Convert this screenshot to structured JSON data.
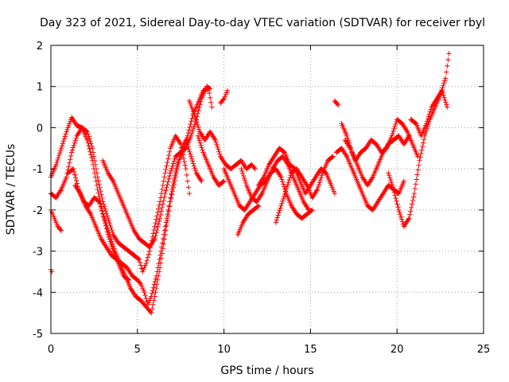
{
  "chart_data": {
    "type": "scatter",
    "title": "Day 323 of 2021, Sidereal Day-to-day VTEC variation (SDTVAR) for receiver rbyl",
    "xlabel": "GPS time / hours",
    "ylabel": "SDTVAR / TECUs",
    "xlim": [
      0,
      25
    ],
    "ylim": [
      -5,
      2
    ],
    "x_ticks": [
      "0",
      "5",
      "10",
      "15",
      "20",
      "25"
    ],
    "y_ticks": [
      "-5",
      "-4",
      "-3",
      "-2",
      "-1",
      "0",
      "1",
      "2"
    ],
    "grid": true,
    "marker": "+",
    "color": "#ff0000",
    "tracks": [
      {
        "points": [
          [
            0.0,
            -1.2
          ],
          [
            0.3,
            -0.9
          ],
          [
            0.6,
            -0.5
          ],
          [
            0.9,
            -0.1
          ],
          [
            1.2,
            0.25
          ],
          [
            1.5,
            0.05
          ],
          [
            1.8,
            0.0
          ],
          [
            2.1,
            -0.1
          ],
          [
            2.4,
            -0.5
          ],
          [
            2.7,
            -1.2
          ],
          [
            3.0,
            -1.8
          ],
          [
            3.3,
            -2.2
          ],
          [
            3.6,
            -2.6
          ],
          [
            3.9,
            -2.8
          ],
          [
            4.2,
            -2.9
          ],
          [
            4.5,
            -3.0
          ],
          [
            4.8,
            -3.1
          ],
          [
            5.1,
            -3.2
          ],
          [
            5.3,
            -3.5
          ],
          [
            5.5,
            -3.3
          ],
          [
            5.7,
            -3.0
          ],
          [
            6.0,
            -2.4
          ],
          [
            6.3,
            -1.8
          ],
          [
            6.6,
            -1.1
          ],
          [
            6.9,
            -0.5
          ],
          [
            7.2,
            -0.2
          ],
          [
            7.5,
            -0.4
          ],
          [
            7.8,
            -1.0
          ],
          [
            8.0,
            -1.6
          ]
        ]
      },
      {
        "points": [
          [
            0.0,
            -1.6
          ],
          [
            0.3,
            -1.7
          ],
          [
            0.6,
            -1.5
          ],
          [
            0.9,
            -1.2
          ],
          [
            1.2,
            -0.6
          ],
          [
            1.5,
            -0.2
          ],
          [
            1.8,
            0.0
          ],
          [
            2.1,
            -0.3
          ],
          [
            2.4,
            -0.8
          ],
          [
            2.7,
            -1.5
          ],
          [
            3.0,
            -2.1
          ],
          [
            3.3,
            -2.6
          ],
          [
            3.6,
            -3.0
          ],
          [
            3.9,
            -3.3
          ],
          [
            4.2,
            -3.6
          ],
          [
            4.5,
            -3.7
          ]
        ]
      },
      {
        "points": [
          [
            0.0,
            -2.0
          ],
          [
            0.2,
            -2.2
          ],
          [
            0.4,
            -2.4
          ],
          [
            0.6,
            -2.5
          ]
        ]
      },
      {
        "points": [
          [
            0.0,
            -3.45
          ],
          [
            0.05,
            -3.5
          ]
        ]
      },
      {
        "points": [
          [
            1.0,
            -1.1
          ],
          [
            1.3,
            -1.0
          ],
          [
            1.6,
            -1.5
          ],
          [
            1.9,
            -1.8
          ],
          [
            2.2,
            -1.9
          ],
          [
            2.5,
            -1.7
          ],
          [
            2.8,
            -1.8
          ],
          [
            3.1,
            -2.2
          ],
          [
            3.4,
            -2.6
          ],
          [
            3.7,
            -3.0
          ],
          [
            4.0,
            -3.3
          ],
          [
            4.3,
            -3.6
          ],
          [
            4.6,
            -3.9
          ],
          [
            4.9,
            -4.1
          ],
          [
            5.2,
            -4.2
          ],
          [
            5.4,
            -4.3
          ],
          [
            5.6,
            -4.4
          ],
          [
            5.8,
            -4.5
          ],
          [
            6.0,
            -4.1
          ],
          [
            6.3,
            -3.4
          ],
          [
            6.6,
            -2.6
          ],
          [
            6.9,
            -1.8
          ],
          [
            7.2,
            -1.2
          ],
          [
            7.5,
            -0.6
          ],
          [
            7.8,
            -0.3
          ],
          [
            8.1,
            -0.7
          ],
          [
            8.4,
            -1.1
          ],
          [
            8.7,
            -1.3
          ]
        ]
      },
      {
        "points": [
          [
            1.4,
            -1.4
          ],
          [
            1.7,
            -1.6
          ],
          [
            2.0,
            -1.9
          ],
          [
            2.3,
            -2.1
          ],
          [
            2.6,
            -2.4
          ],
          [
            2.9,
            -2.7
          ],
          [
            3.2,
            -2.9
          ],
          [
            3.5,
            -3.1
          ],
          [
            3.8,
            -3.2
          ],
          [
            4.1,
            -3.3
          ],
          [
            4.4,
            -3.4
          ],
          [
            4.7,
            -3.6
          ],
          [
            5.0,
            -3.7
          ],
          [
            5.2,
            -3.8
          ],
          [
            5.4,
            -4.0
          ],
          [
            5.6,
            -4.3
          ],
          [
            5.8,
            -4.1
          ],
          [
            6.1,
            -3.6
          ],
          [
            6.4,
            -2.9
          ],
          [
            6.7,
            -2.2
          ],
          [
            7.0,
            -1.5
          ],
          [
            7.3,
            -0.9
          ],
          [
            7.6,
            -0.6
          ],
          [
            7.9,
            -0.2
          ],
          [
            8.2,
            0.3
          ],
          [
            8.5,
            0.6
          ],
          [
            8.8,
            0.9
          ],
          [
            9.1,
            0.95
          ],
          [
            9.3,
            0.5
          ]
        ]
      },
      {
        "points": [
          [
            3.0,
            -0.8
          ],
          [
            3.3,
            -1.1
          ],
          [
            3.6,
            -1.3
          ],
          [
            3.9,
            -1.6
          ],
          [
            4.2,
            -1.9
          ],
          [
            4.5,
            -2.2
          ],
          [
            4.8,
            -2.5
          ],
          [
            5.1,
            -2.7
          ],
          [
            5.4,
            -2.8
          ],
          [
            5.7,
            -2.9
          ],
          [
            6.0,
            -2.7
          ],
          [
            6.3,
            -2.2
          ],
          [
            6.6,
            -1.6
          ],
          [
            6.9,
            -1.1
          ],
          [
            7.2,
            -0.7
          ],
          [
            7.5,
            -0.6
          ],
          [
            7.8,
            -0.5
          ],
          [
            8.1,
            -0.2
          ],
          [
            8.4,
            0.2
          ],
          [
            8.7,
            0.7
          ],
          [
            9.0,
            1.0
          ],
          [
            9.2,
            0.95
          ]
        ]
      },
      {
        "points": [
          [
            8.0,
            0.65
          ],
          [
            8.3,
            0.3
          ],
          [
            8.6,
            -0.1
          ],
          [
            8.9,
            -0.3
          ],
          [
            9.2,
            -0.1
          ],
          [
            9.5,
            -0.3
          ],
          [
            9.8,
            -0.7
          ],
          [
            10.1,
            -0.9
          ],
          [
            10.4,
            -1.0
          ],
          [
            10.7,
            -0.9
          ],
          [
            11.0,
            -0.8
          ],
          [
            11.3,
            -1.0
          ],
          [
            11.6,
            -0.9
          ],
          [
            11.8,
            -1.0
          ]
        ]
      },
      {
        "points": [
          [
            8.5,
            -0.2
          ],
          [
            8.8,
            -0.6
          ],
          [
            9.1,
            -0.9
          ],
          [
            9.4,
            -1.2
          ],
          [
            9.7,
            -1.4
          ],
          [
            10.0,
            -1.3
          ]
        ]
      },
      {
        "points": [
          [
            9.8,
            0.6
          ],
          [
            10.0,
            0.7
          ],
          [
            10.2,
            0.9
          ]
        ]
      },
      {
        "points": [
          [
            10.0,
            -1.0
          ],
          [
            10.3,
            -1.3
          ],
          [
            10.6,
            -1.6
          ],
          [
            10.9,
            -1.9
          ],
          [
            11.2,
            -2.0
          ],
          [
            11.5,
            -1.8
          ],
          [
            11.8,
            -1.6
          ],
          [
            12.1,
            -1.4
          ],
          [
            12.4,
            -1.3
          ],
          [
            12.7,
            -1.1
          ],
          [
            13.0,
            -1.0
          ],
          [
            13.3,
            -1.2
          ],
          [
            13.6,
            -1.6
          ],
          [
            13.9,
            -1.9
          ],
          [
            14.2,
            -2.1
          ],
          [
            14.5,
            -2.2
          ],
          [
            14.8,
            -2.1
          ],
          [
            15.1,
            -2.0
          ]
        ]
      },
      {
        "points": [
          [
            10.8,
            -2.6
          ],
          [
            11.1,
            -2.3
          ],
          [
            11.4,
            -2.1
          ],
          [
            11.7,
            -2.0
          ],
          [
            12.0,
            -1.9
          ]
        ]
      },
      {
        "points": [
          [
            11.0,
            -1.0
          ],
          [
            11.3,
            -1.4
          ],
          [
            11.6,
            -1.7
          ],
          [
            11.9,
            -1.8
          ],
          [
            12.2,
            -1.6
          ],
          [
            12.5,
            -1.3
          ],
          [
            12.8,
            -1.0
          ],
          [
            13.1,
            -0.8
          ],
          [
            13.4,
            -0.7
          ],
          [
            13.7,
            -0.9
          ],
          [
            14.0,
            -1.2
          ],
          [
            14.3,
            -1.5
          ],
          [
            14.6,
            -1.8
          ],
          [
            14.9,
            -2.0
          ]
        ]
      },
      {
        "points": [
          [
            12.0,
            -1.4
          ],
          [
            12.3,
            -1.2
          ],
          [
            12.6,
            -0.9
          ],
          [
            12.9,
            -0.7
          ],
          [
            13.2,
            -0.5
          ],
          [
            13.5,
            -0.6
          ],
          [
            13.8,
            -0.9
          ],
          [
            14.1,
            -1.0
          ],
          [
            14.4,
            -1.3
          ],
          [
            14.7,
            -1.6
          ],
          [
            15.0,
            -1.4
          ],
          [
            15.3,
            -1.2
          ],
          [
            15.6,
            -1.0
          ],
          [
            15.9,
            -1.1
          ],
          [
            16.2,
            -1.4
          ],
          [
            16.4,
            -1.6
          ]
        ]
      },
      {
        "points": [
          [
            13.0,
            -2.3
          ],
          [
            13.3,
            -1.9
          ],
          [
            13.6,
            -1.5
          ],
          [
            13.9,
            -1.1
          ],
          [
            14.2,
            -1.0
          ],
          [
            14.5,
            -1.2
          ],
          [
            14.8,
            -1.4
          ],
          [
            15.1,
            -1.7
          ],
          [
            15.4,
            -1.5
          ],
          [
            15.7,
            -1.1
          ],
          [
            16.0,
            -0.8
          ],
          [
            16.3,
            -0.7
          ]
        ]
      },
      {
        "points": [
          [
            16.4,
            0.65
          ],
          [
            16.6,
            0.55
          ]
        ]
      },
      {
        "points": [
          [
            16.5,
            -0.6
          ],
          [
            16.8,
            -0.5
          ],
          [
            17.1,
            -0.7
          ],
          [
            17.4,
            -1.0
          ],
          [
            17.7,
            -1.3
          ],
          [
            18.0,
            -1.6
          ],
          [
            18.3,
            -1.9
          ],
          [
            18.6,
            -2.0
          ],
          [
            18.9,
            -1.8
          ],
          [
            19.2,
            -1.6
          ],
          [
            19.5,
            -1.4
          ],
          [
            19.8,
            -1.5
          ],
          [
            20.1,
            -1.6
          ],
          [
            20.4,
            -1.3
          ]
        ]
      },
      {
        "points": [
          [
            16.8,
            0.1
          ],
          [
            17.1,
            -0.2
          ],
          [
            17.4,
            -0.6
          ],
          [
            17.7,
            -0.9
          ],
          [
            18.0,
            -1.2
          ],
          [
            18.3,
            -1.4
          ],
          [
            18.6,
            -1.2
          ],
          [
            18.9,
            -0.9
          ],
          [
            19.2,
            -0.6
          ],
          [
            19.5,
            -0.4
          ],
          [
            19.8,
            -0.3
          ],
          [
            20.1,
            -0.2
          ],
          [
            20.4,
            -0.4
          ],
          [
            20.7,
            -0.2
          ]
        ]
      },
      {
        "points": [
          [
            17.0,
            -0.3
          ],
          [
            17.3,
            -0.5
          ],
          [
            17.6,
            -0.8
          ],
          [
            17.9,
            -0.6
          ],
          [
            18.2,
            -0.5
          ],
          [
            18.5,
            -0.3
          ],
          [
            18.8,
            -0.4
          ],
          [
            19.1,
            -0.6
          ],
          [
            19.4,
            -0.5
          ],
          [
            19.7,
            -0.2
          ],
          [
            20.0,
            0.2
          ],
          [
            20.3,
            0.1
          ],
          [
            20.6,
            -0.1
          ],
          [
            20.9,
            -0.4
          ],
          [
            21.2,
            -0.7
          ]
        ]
      },
      {
        "points": [
          [
            19.5,
            -1.1
          ],
          [
            19.8,
            -1.5
          ],
          [
            20.1,
            -2.0
          ],
          [
            20.4,
            -2.4
          ],
          [
            20.7,
            -2.2
          ],
          [
            21.0,
            -1.6
          ],
          [
            21.3,
            -0.8
          ],
          [
            21.6,
            -0.2
          ],
          [
            21.9,
            0.2
          ],
          [
            22.2,
            0.5
          ],
          [
            22.5,
            0.8
          ],
          [
            22.8,
            1.2
          ],
          [
            23.0,
            1.8
          ]
        ]
      },
      {
        "points": [
          [
            20.8,
            0.2
          ],
          [
            21.1,
            0.1
          ],
          [
            21.4,
            -0.2
          ],
          [
            21.7,
            0.1
          ],
          [
            22.0,
            0.5
          ],
          [
            22.3,
            0.7
          ],
          [
            22.6,
            0.9
          ],
          [
            22.9,
            0.5
          ]
        ]
      }
    ]
  }
}
